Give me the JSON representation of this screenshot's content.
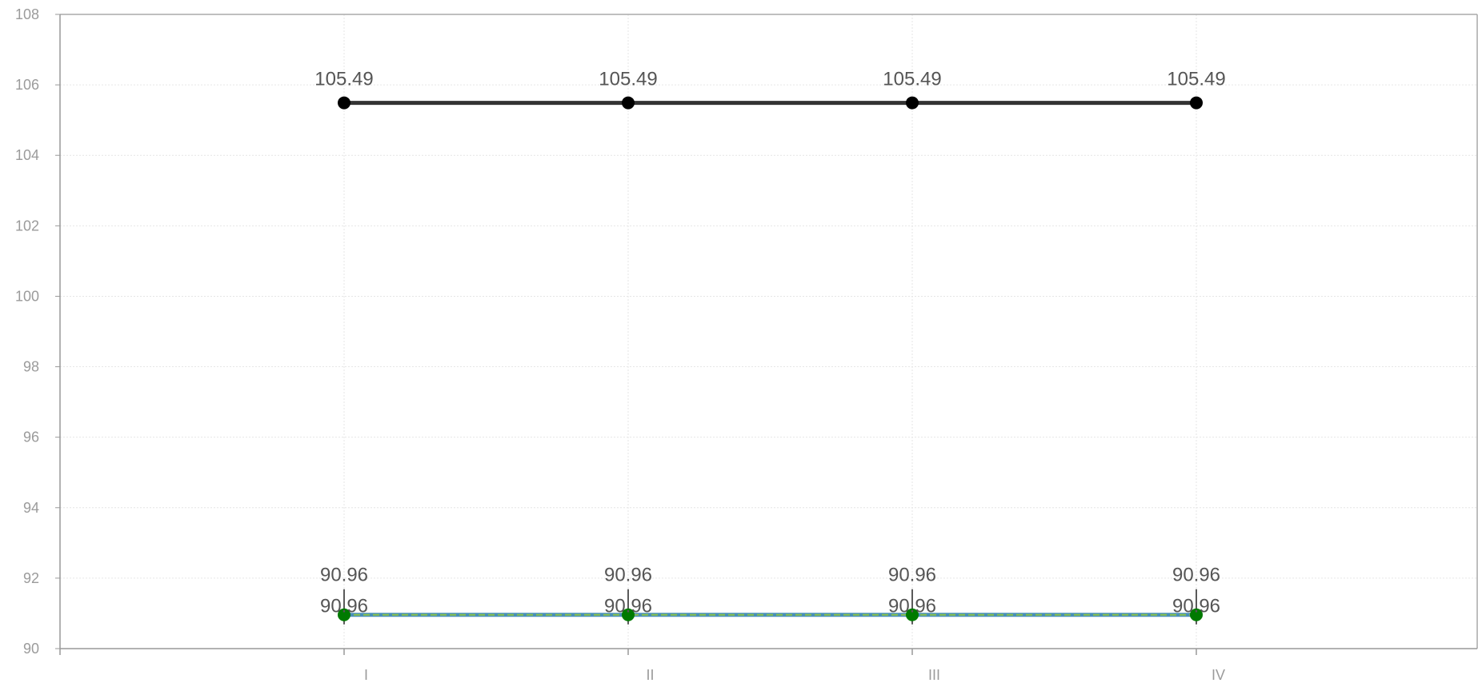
{
  "chart_data": {
    "type": "line",
    "categories": [
      "I",
      "II",
      "III",
      "IV"
    ],
    "ylim": [
      90,
      108
    ],
    "yticks": [
      90,
      92,
      94,
      96,
      98,
      100,
      102,
      104,
      106,
      108
    ],
    "grid": true,
    "series": [
      {
        "values": [
          105.49,
          105.49,
          105.49,
          105.49
        ],
        "color": "#333333",
        "marker_color": "#000000",
        "labels": [
          "105.49",
          "105.49",
          "105.49",
          "105.49"
        ]
      },
      {
        "values": [
          90.96,
          90.96,
          90.96,
          90.96
        ],
        "color": "#4a90b8",
        "marker_color": "#007a00",
        "labels": [
          "90.96",
          "90.96",
          "90.96",
          "90.96"
        ]
      },
      {
        "values": [
          90.96,
          90.96,
          90.96,
          90.96
        ],
        "color": "#8bc34a",
        "marker_color": "#007a00",
        "labels": [
          "90.96",
          "90.96",
          "90.96",
          "90.96"
        ]
      }
    ]
  }
}
